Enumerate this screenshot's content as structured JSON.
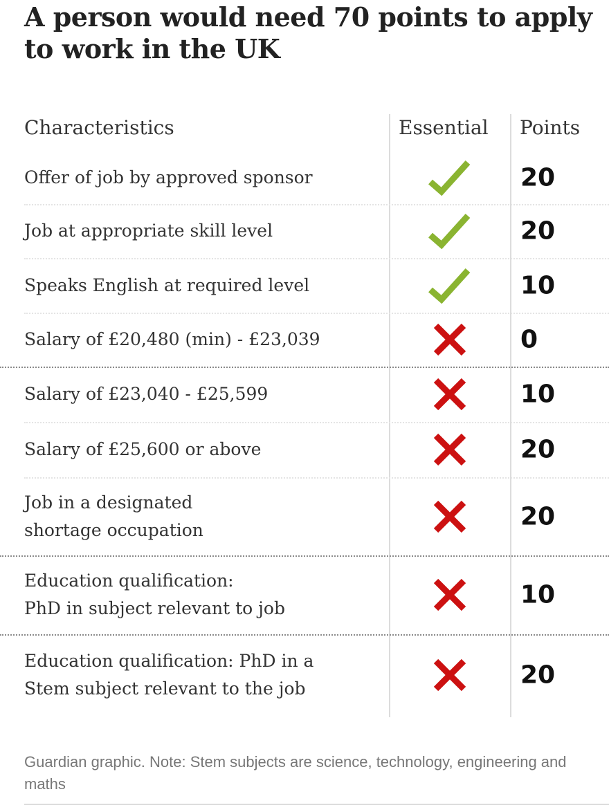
{
  "title": "A person would need 70 points to apply to work in the UK",
  "colors": {
    "check": "#8ab431",
    "cross": "#cc1111"
  },
  "chart_data": {
    "type": "table",
    "columns": [
      "Characteristics",
      "Essential",
      "Points"
    ],
    "rows": [
      {
        "label": "Offer of job by approved sponsor",
        "essential": true,
        "icon": "check-icon",
        "points": "20"
      },
      {
        "label": "Job at appropriate skill level",
        "essential": true,
        "icon": "check-icon",
        "points": "20"
      },
      {
        "label": "Speaks English at required level",
        "essential": true,
        "icon": "check-icon",
        "points": "10"
      },
      {
        "label": "Salary of £20,480 (min) - £23,039",
        "essential": false,
        "icon": "cross-icon",
        "points": "0"
      },
      {
        "label": "Salary of £23,040 - £25,599",
        "essential": false,
        "icon": "cross-icon",
        "points": "10"
      },
      {
        "label": "Salary of £25,600 or above",
        "essential": false,
        "icon": "cross-icon",
        "points": "20"
      },
      {
        "label": "Job in a designated\nshortage occupation",
        "essential": false,
        "icon": "cross-icon",
        "points": "20"
      },
      {
        "label": "Education qualification:\nPhD in subject relevant to job",
        "essential": false,
        "icon": "cross-icon",
        "points": "10"
      },
      {
        "label": "Education qualification: PhD in a\nStem subject relevant to the job",
        "essential": false,
        "icon": "cross-icon",
        "points": "20"
      }
    ]
  },
  "footnote": "Guardian graphic. Note: Stem subjects are science, technology, engineering and maths"
}
